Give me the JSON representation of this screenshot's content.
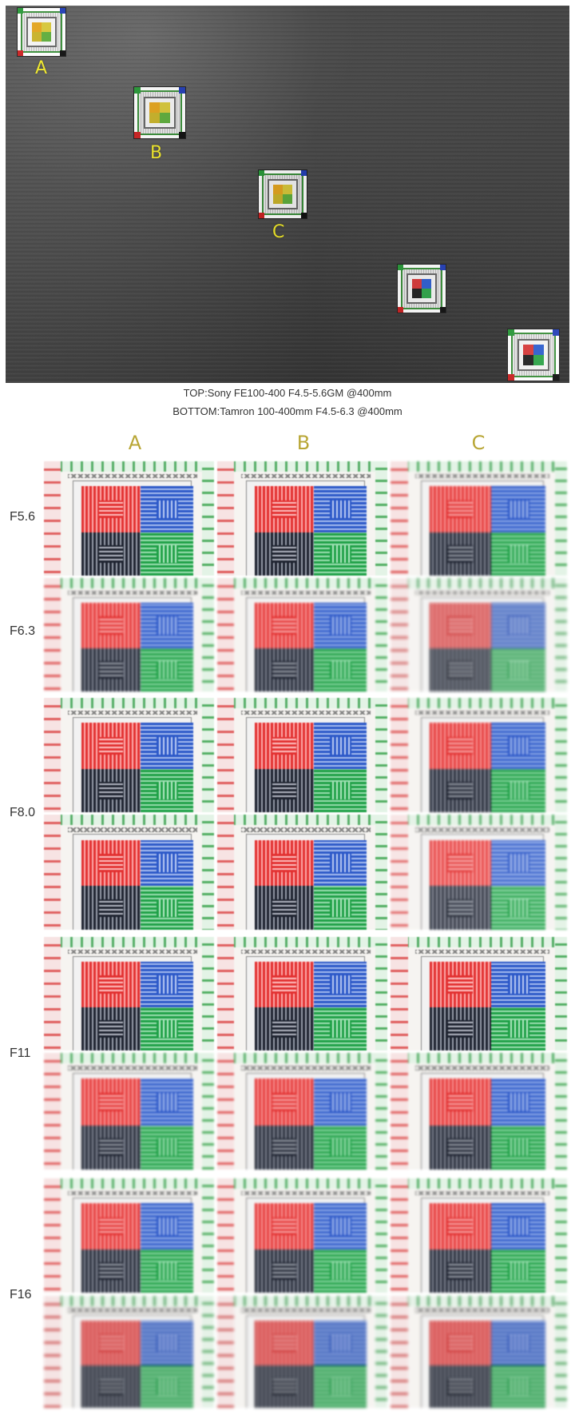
{
  "overview": {
    "labels": [
      "A",
      "B",
      "C"
    ]
  },
  "captions": {
    "top": "TOP:Sony FE100-400 F4.5-5.6GM @400mm",
    "bottom": "BOTTOM:Tamron 100-400mm F4.5-6.3 @400mm"
  },
  "columns": [
    "A",
    "B",
    "C"
  ],
  "rows": {
    "f56": "F5.6",
    "f63": "F6.3",
    "f80": "F8.0",
    "f11": "F11",
    "f16": "F16"
  },
  "colors": {
    "label_yellow": "#f2ea2a",
    "column_header": "#b8a635"
  }
}
